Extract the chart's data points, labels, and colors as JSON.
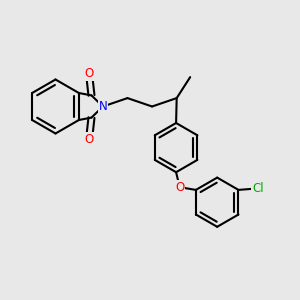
{
  "background_color": "#e8e8e8",
  "bond_color": "#000000",
  "atom_colors": {
    "O": "#ff0000",
    "N": "#0000ff",
    "Cl": "#00aa00",
    "C": "#000000"
  },
  "bond_width": 1.5,
  "figsize": [
    3.0,
    3.0
  ],
  "dpi": 100,
  "xlim": [
    0,
    10
  ],
  "ylim": [
    0,
    10
  ]
}
